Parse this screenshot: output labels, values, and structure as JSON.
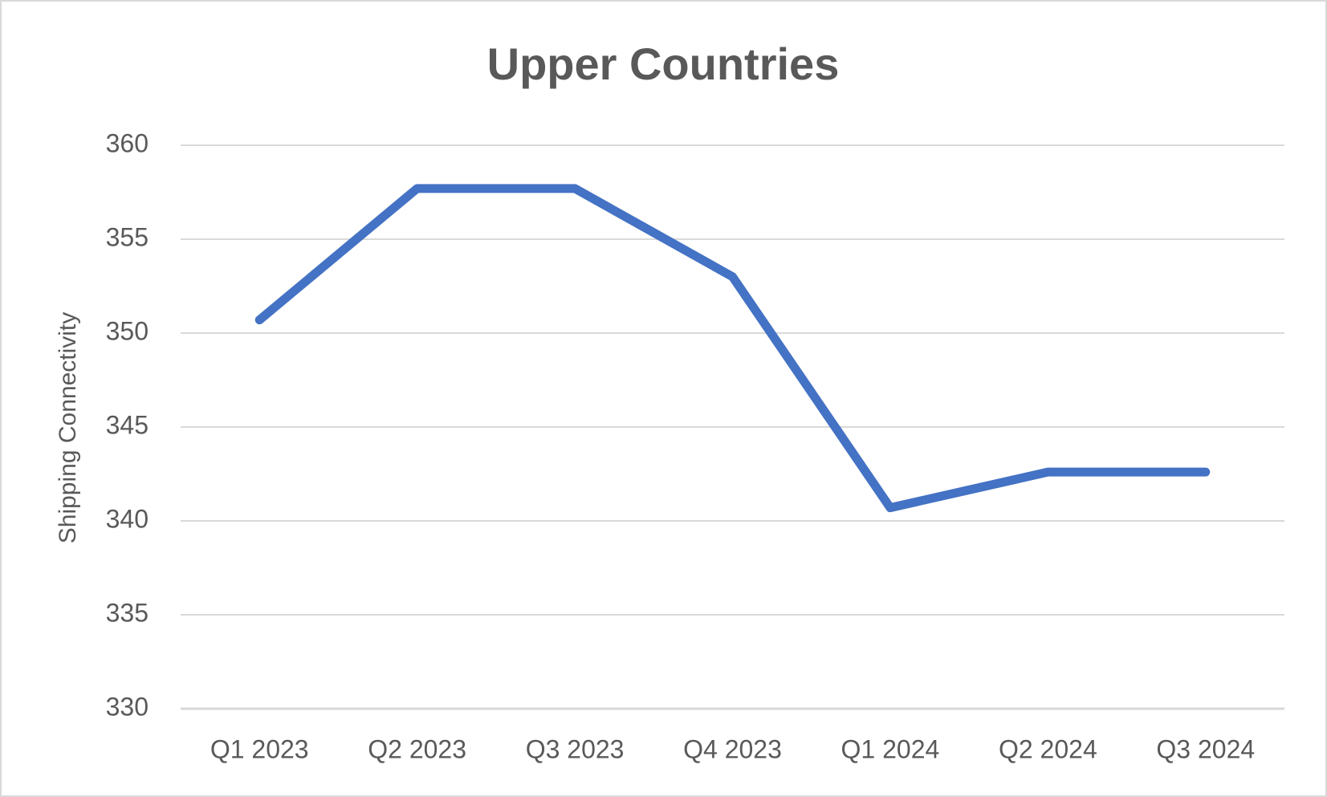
{
  "chart_data": {
    "type": "line",
    "title": "Upper Countries",
    "y_label": "Shipping Connectivity",
    "categories": [
      "Q1 2023",
      "Q2 2023",
      "Q3 2023",
      "Q4 2023",
      "Q1 2024",
      "Q2 2024",
      "Q3 2024"
    ],
    "values": [
      350.7,
      357.7,
      357.7,
      353.0,
      340.7,
      342.6,
      342.6
    ],
    "color": "#4472c4",
    "ylim": [
      330,
      360
    ],
    "yticks": [
      330,
      335,
      340,
      345,
      350,
      355,
      360
    ],
    "grid": true
  }
}
